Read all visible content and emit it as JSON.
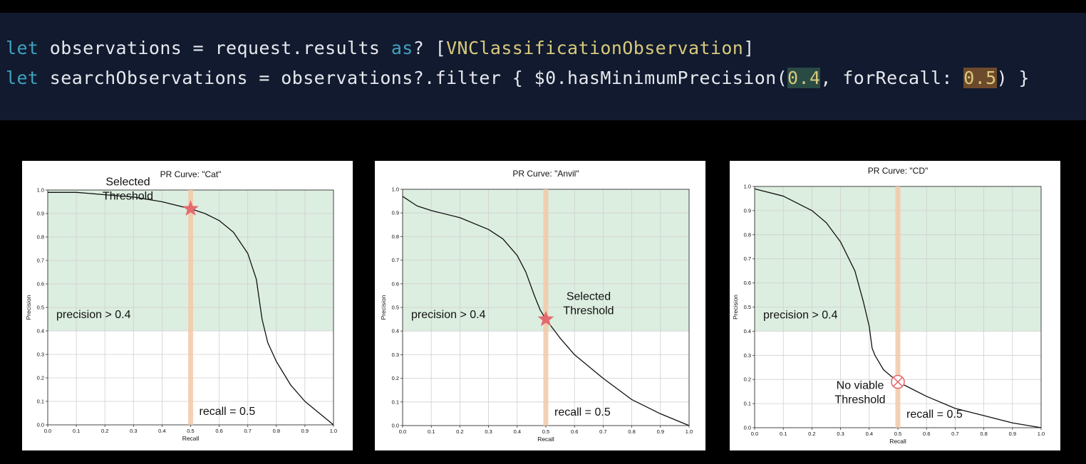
{
  "code": {
    "line1": {
      "kw1": "let",
      "t1": " observations = request.results ",
      "kw2": "as",
      "t2": "? [",
      "type": "VNClassificationObservation",
      "t3": "]"
    },
    "line2": {
      "kw1": "let",
      "t1": " searchObservations = observations?.filter { $0.hasMinimumPrecision(",
      "num1": "0.4",
      "t2": ", forRecall: ",
      "num2": "0.5",
      "t3": ") }"
    }
  },
  "colors": {
    "region_fill": "#dceee0",
    "recall_band": "#f3c9a8",
    "star": "#e46a6e",
    "curve": "#111111"
  },
  "chart_data": [
    {
      "type": "line",
      "title": "PR Curve: \"Cat\"",
      "xlabel": "Recall",
      "ylabel": "Precision",
      "xlim": [
        0,
        1
      ],
      "ylim": [
        0,
        1
      ],
      "xticks": [
        "0.0",
        "0.1",
        "0.2",
        "0.3",
        "0.4",
        "0.5",
        "0.6",
        "0.7",
        "0.8",
        "0.9",
        "1.0"
      ],
      "yticks": [
        "0.0",
        "0.1",
        "0.2",
        "0.3",
        "0.4",
        "0.5",
        "0.6",
        "0.7",
        "0.8",
        "0.9",
        "1.0"
      ],
      "grid": true,
      "precision_min": 0.4,
      "recall_target": 0.5,
      "x": [
        0.0,
        0.1,
        0.2,
        0.3,
        0.4,
        0.5,
        0.55,
        0.6,
        0.65,
        0.7,
        0.73,
        0.75,
        0.77,
        0.8,
        0.85,
        0.9,
        0.95,
        1.0
      ],
      "y": [
        0.99,
        0.99,
        0.98,
        0.97,
        0.95,
        0.92,
        0.9,
        0.87,
        0.82,
        0.73,
        0.62,
        0.45,
        0.35,
        0.27,
        0.17,
        0.1,
        0.05,
        0.0
      ],
      "marker": {
        "kind": "star",
        "x": 0.5,
        "y": 0.92
      },
      "annotations": {
        "region_label": "precision > 0.4",
        "marker_label_1": "Selected",
        "marker_label_2": "Threshold",
        "recall_label": "recall = 0.5"
      }
    },
    {
      "type": "line",
      "title": "PR Curve: \"Anvil\"",
      "xlabel": "Recall",
      "ylabel": "Precision",
      "xlim": [
        0,
        1
      ],
      "ylim": [
        0,
        1
      ],
      "xticks": [
        "0.0",
        "0.1",
        "0.2",
        "0.3",
        "0.4",
        "0.5",
        "0.6",
        "0.7",
        "0.8",
        "0.9",
        "1.0"
      ],
      "yticks": [
        "0.0",
        "0.1",
        "0.2",
        "0.3",
        "0.4",
        "0.5",
        "0.6",
        "0.7",
        "0.8",
        "0.9",
        "1.0"
      ],
      "grid": true,
      "precision_min": 0.4,
      "recall_target": 0.5,
      "x": [
        0.0,
        0.05,
        0.1,
        0.2,
        0.3,
        0.35,
        0.4,
        0.43,
        0.46,
        0.48,
        0.5,
        0.55,
        0.6,
        0.7,
        0.8,
        0.9,
        1.0
      ],
      "y": [
        0.97,
        0.93,
        0.91,
        0.88,
        0.83,
        0.79,
        0.72,
        0.65,
        0.55,
        0.49,
        0.45,
        0.37,
        0.3,
        0.2,
        0.11,
        0.05,
        0.0
      ],
      "marker": {
        "kind": "star",
        "x": 0.5,
        "y": 0.45
      },
      "annotations": {
        "region_label": "precision > 0.4",
        "marker_label_1": "Selected",
        "marker_label_2": "Threshold",
        "recall_label": "recall = 0.5"
      }
    },
    {
      "type": "line",
      "title": "PR Curve: \"CD\"",
      "xlabel": "Recall",
      "ylabel": "Precision",
      "xlim": [
        0,
        1
      ],
      "ylim": [
        0,
        1
      ],
      "xticks": [
        "0.0",
        "0.1",
        "0.2",
        "0.3",
        "0.4",
        "0.5",
        "0.6",
        "0.7",
        "0.8",
        "0.9",
        "1.0"
      ],
      "yticks": [
        "0.0",
        "0.1",
        "0.2",
        "0.3",
        "0.4",
        "0.5",
        "0.6",
        "0.7",
        "0.8",
        "0.9",
        "1.0"
      ],
      "grid": true,
      "precision_min": 0.4,
      "recall_target": 0.5,
      "x": [
        0.0,
        0.1,
        0.2,
        0.25,
        0.3,
        0.35,
        0.38,
        0.4,
        0.41,
        0.42,
        0.45,
        0.5,
        0.55,
        0.6,
        0.7,
        0.8,
        0.9,
        1.0
      ],
      "y": [
        0.99,
        0.96,
        0.9,
        0.85,
        0.77,
        0.65,
        0.52,
        0.42,
        0.33,
        0.3,
        0.24,
        0.19,
        0.16,
        0.13,
        0.08,
        0.05,
        0.02,
        0.0
      ],
      "marker": {
        "kind": "cross",
        "x": 0.5,
        "y": 0.19
      },
      "annotations": {
        "region_label": "precision > 0.4",
        "marker_label_1": "No viable",
        "marker_label_2": "Threshold",
        "recall_label": "recall = 0.5"
      }
    }
  ]
}
